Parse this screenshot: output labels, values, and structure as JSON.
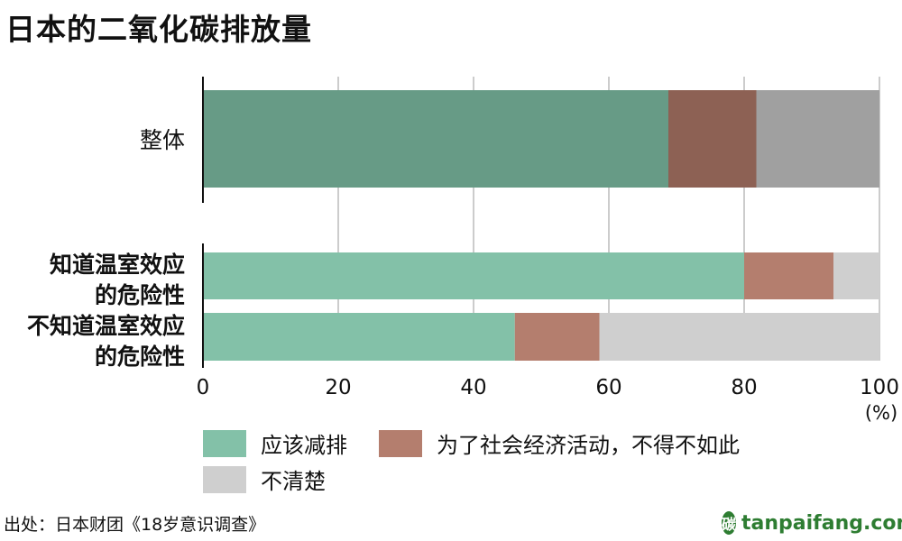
{
  "title": "日本的二氧化碳排放量",
  "source": "出处：日本财团《18岁意识调查》",
  "watermark": {
    "text": "tanpaifang.com",
    "logo": "碳",
    "logo_icon": "leaf-logo-icon"
  },
  "colors": {
    "overall_should": "#679b86",
    "overall_economy": "#8d6154",
    "overall_unclear": "#a0a0a0",
    "should": "#83c1a8",
    "economy": "#b47e6e",
    "unclear": "#cfcfcf",
    "grid": "#cccccc",
    "axis": "#111111"
  },
  "chart_data": {
    "type": "bar",
    "orientation": "horizontal",
    "stacked": true,
    "title": "日本的二氧化碳排放量",
    "categories": [
      "整体",
      "知道温室效应的危险性",
      "不知道温室效应的危险性"
    ],
    "category_display_lines": [
      [
        "整体"
      ],
      [
        "知道温室效应",
        "的危险性"
      ],
      [
        "不知道温室效应",
        "的危险性"
      ]
    ],
    "series": [
      {
        "name": "应该减排",
        "values": [
          68.8,
          80.0,
          46.1
        ]
      },
      {
        "name": "为了社会经济活动，不得不如此",
        "values": [
          13.0,
          13.2,
          12.5
        ]
      },
      {
        "name": "不清楚",
        "values": [
          18.2,
          6.8,
          41.4
        ]
      }
    ],
    "xlim": [
      0,
      100
    ],
    "xticks": [
      0,
      20,
      40,
      60,
      80,
      100
    ],
    "xunit": "(%)",
    "grid": true,
    "legend_position": "bottom-left"
  },
  "legend": [
    {
      "label": "应该减排"
    },
    {
      "label": "为了社会经济活动，不得不如此"
    },
    {
      "label": "不清楚"
    }
  ]
}
